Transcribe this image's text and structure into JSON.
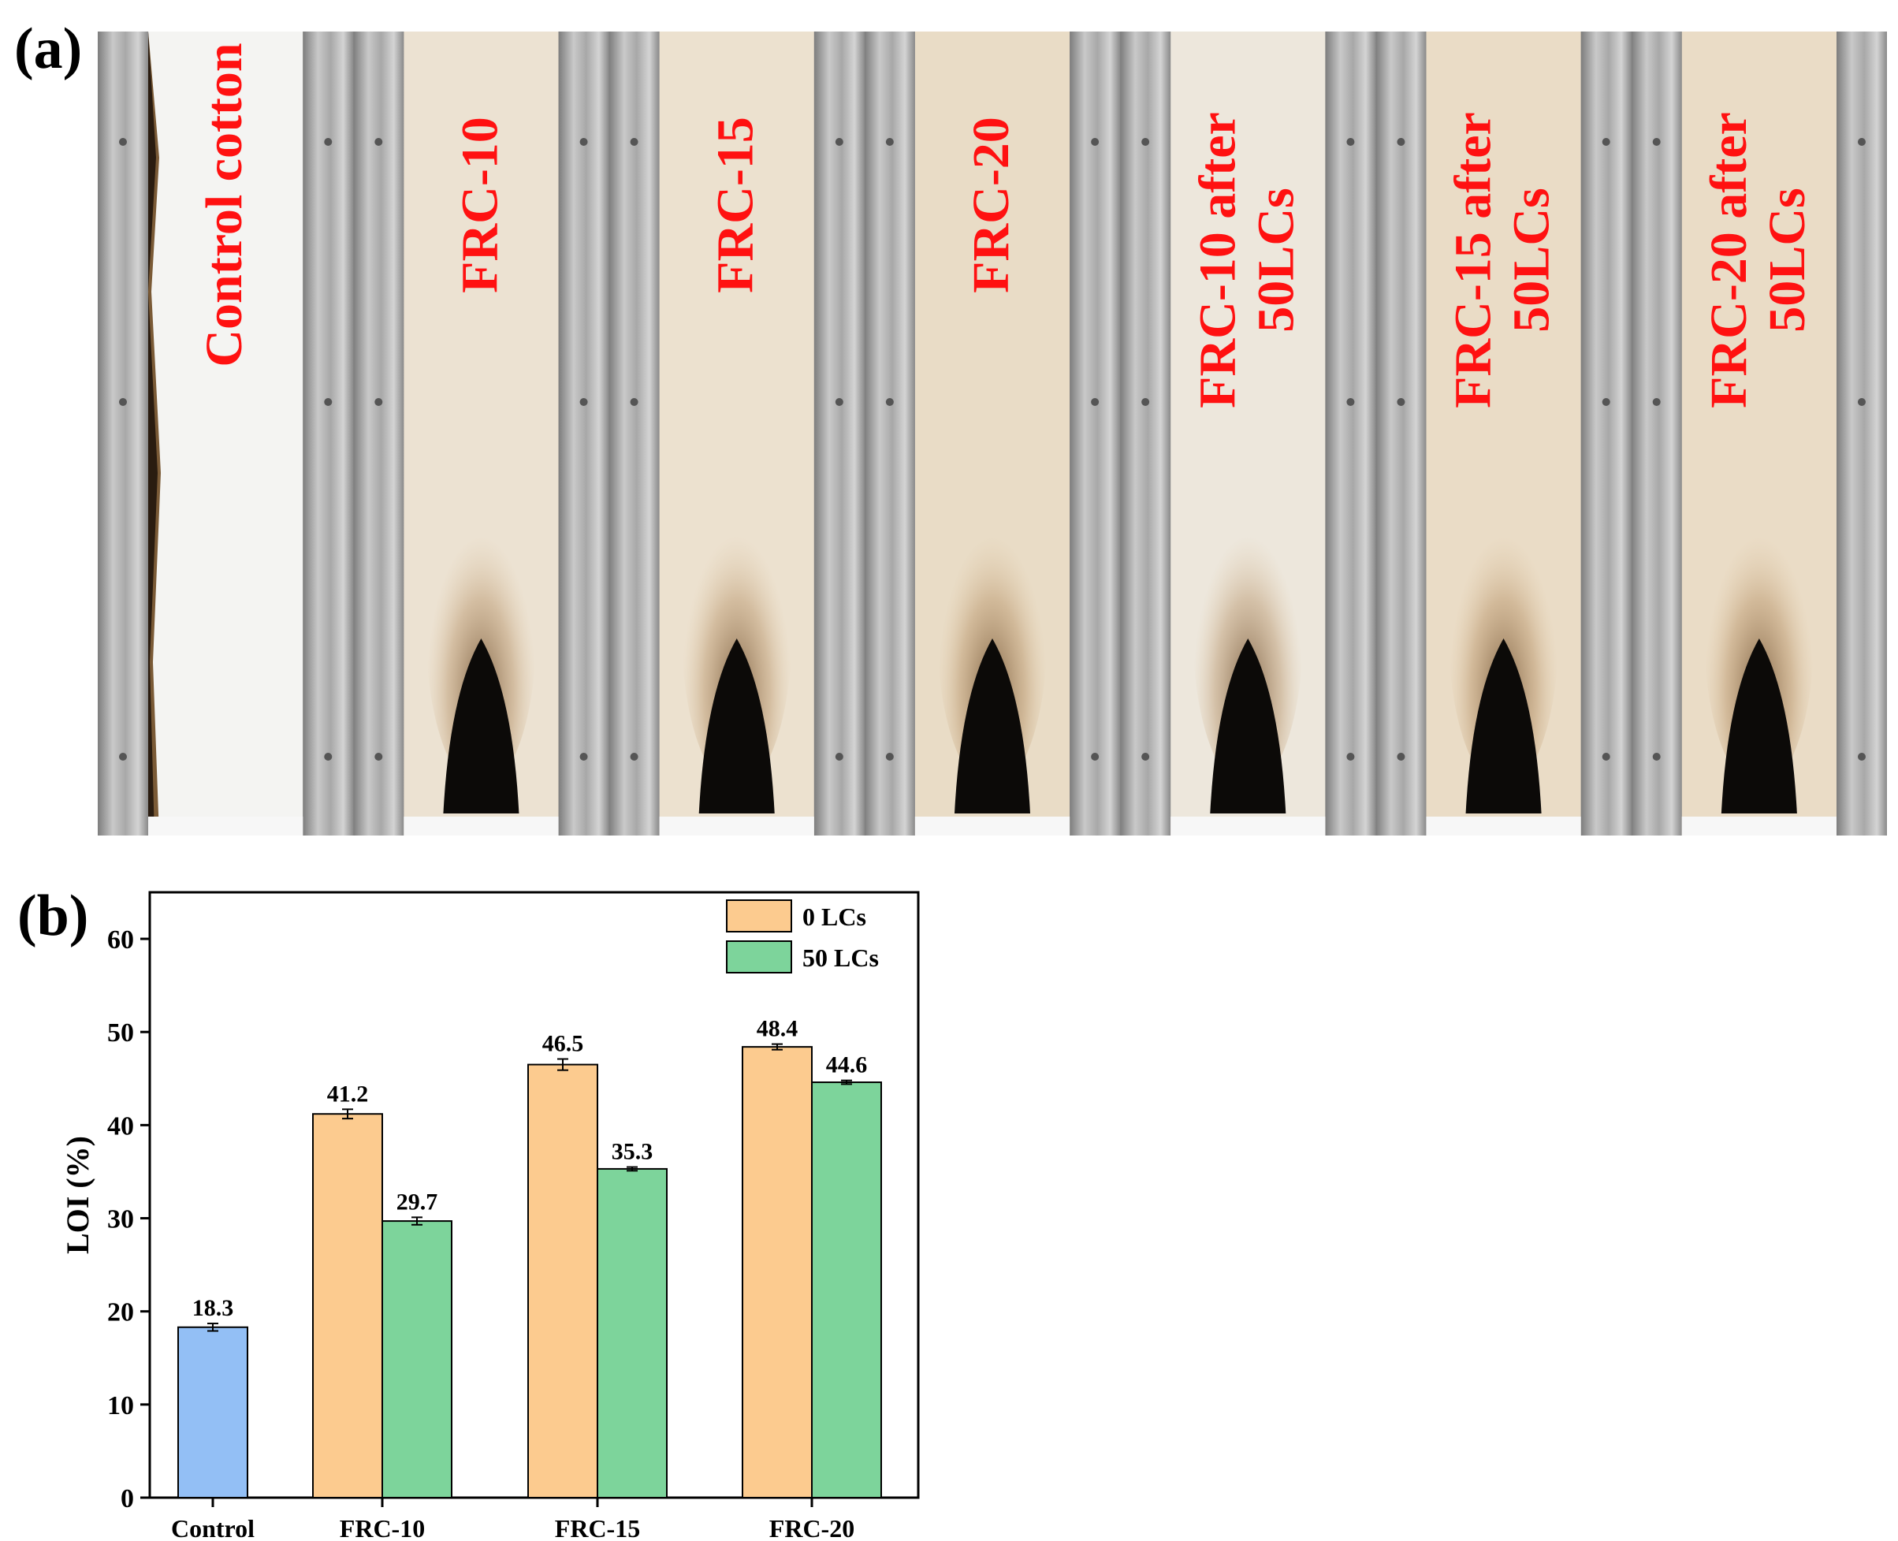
{
  "panel_a": {
    "label": "(a)",
    "samples": [
      {
        "lines": [
          "Control cotton"
        ],
        "fabric": "#f4f4f2",
        "burn": "full"
      },
      {
        "lines": [
          "FRC-10"
        ],
        "fabric": "#ece2d2",
        "burn": "char"
      },
      {
        "lines": [
          "FRC-15"
        ],
        "fabric": "#ece1cf",
        "burn": "char"
      },
      {
        "lines": [
          "FRC-20"
        ],
        "fabric": "#e9dcc6",
        "burn": "char"
      },
      {
        "lines": [
          "FRC-10 after",
          "50LCs"
        ],
        "fabric": "#ede7dc",
        "burn": "char"
      },
      {
        "lines": [
          "FRC-15 after",
          "50LCs"
        ],
        "fabric": "#eadcc6",
        "burn": "char"
      },
      {
        "lines": [
          "FRC-20 after",
          "50LCs"
        ],
        "fabric": "#eadcc6",
        "burn": "char"
      }
    ],
    "label_color": "#ff1111"
  },
  "panel_b": {
    "label": "(b)"
  },
  "chart_data": {
    "type": "bar",
    "ylabel": "LOI (%)",
    "xlabel": "",
    "ylim": [
      0,
      65
    ],
    "yticks": [
      0,
      10,
      20,
      30,
      40,
      50,
      60
    ],
    "categories": [
      "Control",
      "FRC-10",
      "FRC-15",
      "FRC-20"
    ],
    "control": {
      "value": 18.3,
      "error": 0.4,
      "label": "18.3",
      "color": "#93bff5"
    },
    "series": [
      {
        "name": "0 LCs",
        "color": "#fccb8f",
        "values": [
          null,
          41.2,
          46.5,
          48.4
        ],
        "errors": [
          null,
          0.5,
          0.6,
          0.3
        ],
        "labels": [
          "",
          "41.2",
          "46.5",
          "48.4"
        ]
      },
      {
        "name": "50 LCs",
        "color": "#7dd49b",
        "values": [
          null,
          29.7,
          35.3,
          44.6
        ],
        "errors": [
          null,
          0.4,
          0.2,
          0.2
        ],
        "labels": [
          "",
          "29.7",
          "35.3",
          "44.6"
        ]
      }
    ],
    "legend_position": "top-right",
    "grid": false
  }
}
